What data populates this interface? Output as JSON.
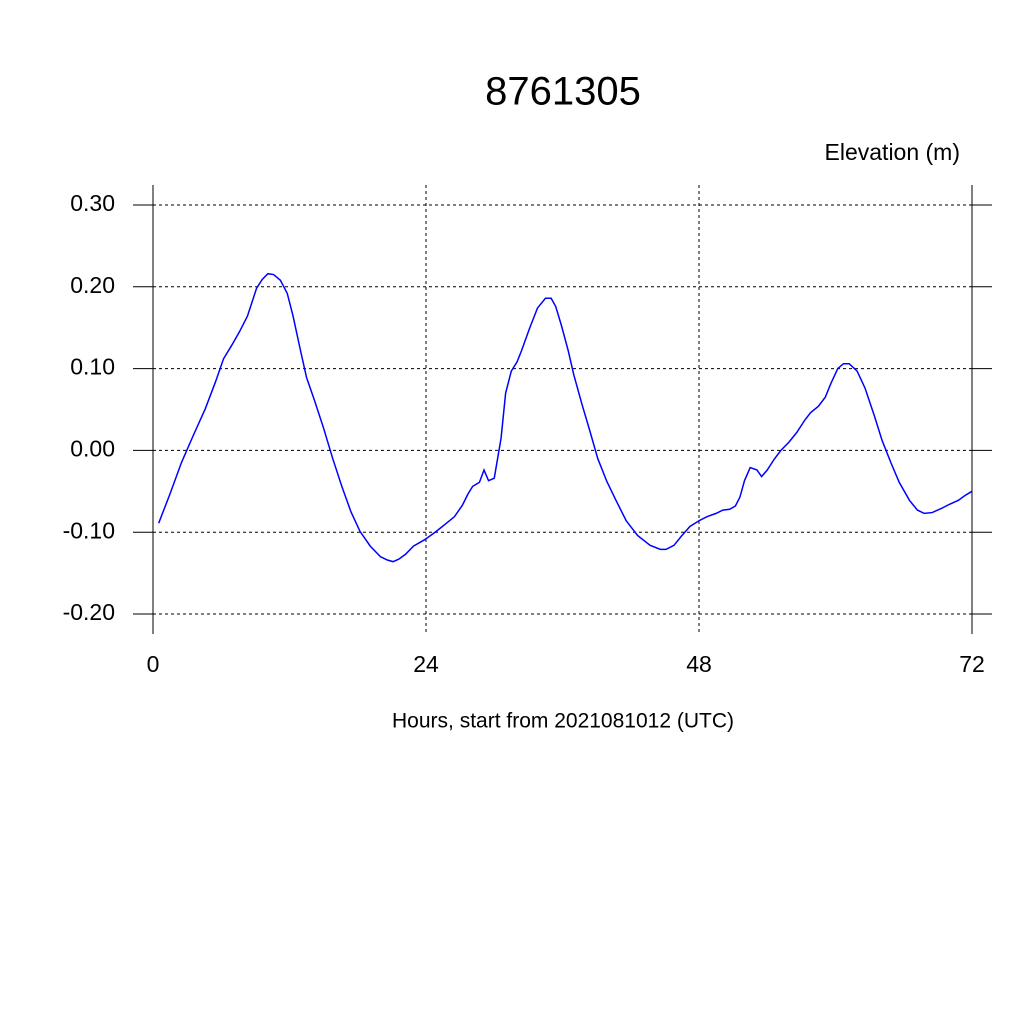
{
  "chart_data": {
    "type": "line",
    "title": "8761305",
    "ylabel": "Elevation (m)",
    "xlabel": "Hours, start from 2021081012 (UTC)",
    "xlim": [
      0,
      72
    ],
    "xticks": [
      0,
      24,
      48,
      72
    ],
    "ylim": [
      -0.2,
      0.3
    ],
    "yticks": [
      {
        "value": 0.3,
        "label": "0.30"
      },
      {
        "value": 0.2,
        "label": "0.20"
      },
      {
        "value": 0.1,
        "label": "0.10"
      },
      {
        "value": 0,
        "label": "0.00"
      },
      {
        "value": -0.1,
        "label": "-0.10"
      },
      {
        "value": -0.2,
        "label": "-0.20"
      }
    ],
    "grid": true,
    "x": [
      0.5,
      1.5,
      2.5,
      3.5,
      4.6,
      5.5,
      6.2,
      6.9,
      7.6,
      8.3,
      9.1,
      9.6,
      10.1,
      10.6,
      11.2,
      11.8,
      12.3,
      13.0,
      13.5,
      14.2,
      15.0,
      15.8,
      16.6,
      17.4,
      18.2,
      19.1,
      20.0,
      20.6,
      21.1,
      21.6,
      22.2,
      22.9,
      23.9,
      24.9,
      25.8,
      26.5,
      27.2,
      27.7,
      28.1,
      28.7,
      29.1,
      29.5,
      30.0,
      30.6,
      31.0,
      31.5,
      32.0,
      32.4,
      33.1,
      33.8,
      34.5,
      35.0,
      35.4,
      35.9,
      36.5,
      37.0,
      37.7,
      38.4,
      39.1,
      39.9,
      40.7,
      41.6,
      42.6,
      43.7,
      44.6,
      45.1,
      45.8,
      46.5,
      47.2,
      48.0,
      48.7,
      49.5,
      50.1,
      50.7,
      51.2,
      51.6,
      52.0,
      52.5,
      53.1,
      53.5,
      54.0,
      54.6,
      55.2,
      55.9,
      56.6,
      57.3,
      57.8,
      58.5,
      59.1,
      59.6,
      60.2,
      60.7,
      61.2,
      61.9,
      62.6,
      63.4,
      64.1,
      64.9,
      65.6,
      66.5,
      67.2,
      67.8,
      68.5,
      69.3,
      70.0,
      70.8,
      71.4,
      72.0
    ],
    "series": [
      {
        "color": "#0000ff",
        "values": [
          -0.089,
          -0.053,
          -0.015,
          0.017,
          0.051,
          0.084,
          0.112,
          0.128,
          0.145,
          0.164,
          0.198,
          0.209,
          0.216,
          0.215,
          0.208,
          0.192,
          0.165,
          0.12,
          0.089,
          0.061,
          0.027,
          -0.01,
          -0.044,
          -0.075,
          -0.099,
          -0.117,
          -0.13,
          -0.134,
          -0.136,
          -0.133,
          -0.127,
          -0.117,
          -0.109,
          -0.099,
          -0.089,
          -0.081,
          -0.067,
          -0.053,
          -0.044,
          -0.039,
          -0.024,
          -0.037,
          -0.034,
          0.015,
          0.07,
          0.097,
          0.108,
          0.122,
          0.149,
          0.174,
          0.186,
          0.186,
          0.176,
          0.153,
          0.122,
          0.092,
          0.057,
          0.024,
          -0.01,
          -0.038,
          -0.061,
          -0.086,
          -0.104,
          -0.116,
          -0.121,
          -0.121,
          -0.116,
          -0.104,
          -0.093,
          -0.086,
          -0.081,
          -0.077,
          -0.073,
          -0.072,
          -0.068,
          -0.057,
          -0.037,
          -0.021,
          -0.024,
          -0.032,
          -0.024,
          -0.011,
          0.0,
          0.01,
          0.022,
          0.037,
          0.046,
          0.054,
          0.065,
          0.082,
          0.1,
          0.106,
          0.106,
          0.097,
          0.076,
          0.043,
          0.012,
          -0.016,
          -0.039,
          -0.061,
          -0.073,
          -0.077,
          -0.076,
          -0.071,
          -0.066,
          -0.061,
          -0.055,
          -0.05
        ]
      }
    ]
  }
}
